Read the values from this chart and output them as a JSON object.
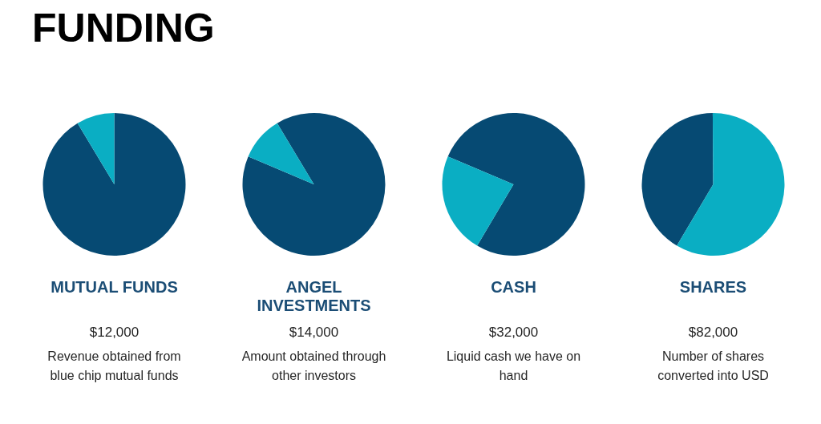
{
  "chart_data": [
    {
      "type": "other",
      "title": "FUNDING"
    },
    {
      "type": "pie",
      "title": "MUTUAL FUNDS",
      "subtitle": "$12,000",
      "annotations": [
        "Revenue obtained from blue chip mutual funds"
      ],
      "categories": [
        null,
        null
      ],
      "values": [
        91.4,
        8.6
      ],
      "colors": [
        "#064a73",
        "#0aaec3"
      ]
    },
    {
      "type": "pie",
      "title": "ANGEL INVESTMENTS",
      "subtitle": "$14,000",
      "annotations": [
        "Amount obtained through other investors"
      ],
      "categories": [
        null,
        null
      ],
      "values": [
        90,
        10
      ],
      "colors": [
        "#064a73",
        "#0aaec3"
      ]
    },
    {
      "type": "pie",
      "title": "CASH",
      "subtitle": "$32,000",
      "annotations": [
        "Liquid cash we have on hand"
      ],
      "categories": [
        null,
        null
      ],
      "values": [
        77.1,
        22.9
      ],
      "colors": [
        "#064a73",
        "#0aaec3"
      ]
    },
    {
      "type": "pie",
      "title": "SHARES",
      "subtitle": "$82,000",
      "annotations": [
        "Number of shares converted into USD"
      ],
      "categories": [
        null,
        null
      ],
      "values": [
        41.4,
        58.6
      ],
      "colors": [
        "#064a73",
        "#0aaec3"
      ]
    }
  ]
}
